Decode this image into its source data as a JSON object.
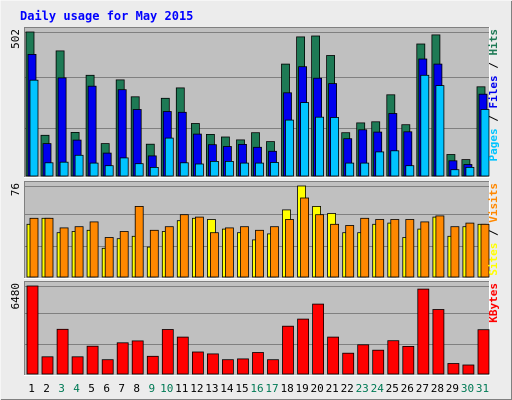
{
  "colors": {
    "frame_bg": "#ececec",
    "panel_bg": "#c0c0c0",
    "grid": "#808080",
    "title": "#0000ff",
    "hits": "#1e7a55",
    "files": "#0000ee",
    "pages": "#00c4ff",
    "sites": "#ffff00",
    "visits": "#ff8800",
    "kbytes": "#ff0000",
    "weekend_day": "#007a55",
    "weekday_day": "#000000"
  },
  "chart_data": {
    "type": "bar",
    "title": "Daily usage for May 2015",
    "x_label_colors": [
      "weekday",
      "weekday",
      "weekend",
      "weekend",
      "weekday",
      "weekday",
      "weekday",
      "weekday",
      "weekend",
      "weekend",
      "weekday",
      "weekday",
      "weekday",
      "weekday",
      "weekday",
      "weekend",
      "weekend",
      "weekday",
      "weekday",
      "weekday",
      "weekday",
      "weekday",
      "weekend",
      "weekend",
      "weekday",
      "weekday",
      "weekday",
      "weekday",
      "weekday",
      "weekend",
      "weekend"
    ],
    "categories": [
      "1",
      "2",
      "3",
      "4",
      "5",
      "6",
      "7",
      "8",
      "9",
      "10",
      "11",
      "12",
      "13",
      "14",
      "15",
      "16",
      "17",
      "18",
      "19",
      "20",
      "21",
      "22",
      "23",
      "24",
      "25",
      "26",
      "27",
      "28",
      "29",
      "30",
      "31"
    ],
    "panels": [
      {
        "id": "hits-files-pages",
        "ymax": 502,
        "ymax_label": "502",
        "legend": {
          "pages": "Pages",
          "sep1": " / ",
          "files": "Files",
          "sep2": " / ",
          "hits": "Hits"
        },
        "series": [
          {
            "name": "Hits",
            "color_key": "hits",
            "values": [
              502,
              142,
              436,
              152,
              351,
              113,
              335,
              276,
              111,
              271,
              307,
              183,
              145,
              136,
              126,
              151,
              120,
              390,
              485,
              488,
              420,
              151,
              185,
              189,
              283,
              179,
              460,
              492,
              75,
              57,
              311
            ]
          },
          {
            "name": "Files",
            "color_key": "files",
            "values": [
              424,
              113,
              342,
              125,
              313,
              80,
              301,
              232,
              70,
              225,
              222,
              146,
              109,
              103,
              110,
              100,
              86,
              290,
              381,
              341,
              322,
              130,
              161,
              153,
              218,
              154,
              408,
              390,
              53,
              40,
              285
            ]
          },
          {
            "name": "Pages",
            "color_key": "pages",
            "values": [
              334,
              46,
              48,
              72,
              45,
              36,
              63,
              43,
              30,
              132,
              46,
              42,
              51,
              51,
              45,
              45,
              47,
              195,
              256,
              205,
              204,
              45,
              45,
              84,
              88,
              36,
              351,
              315,
              22,
              30,
              232
            ]
          }
        ]
      },
      {
        "id": "sites-visits",
        "ymax": 76,
        "ymax_label": "76",
        "legend": {
          "sites": "Sites",
          "sep1": " / ",
          "visits": "Visits"
        },
        "series": [
          {
            "name": "Sites",
            "color_key": "sites",
            "values": [
              44,
              49,
              37,
              38,
              39,
              24,
              32,
              34,
              25,
              38,
              47,
              49,
              48,
              40,
              37,
              31,
              36,
              56,
              76,
              59,
              53,
              37,
              37,
              44,
              45,
              33,
              40,
              50,
              34,
              42,
              44
            ]
          },
          {
            "name": "Visits",
            "color_key": "visits",
            "values": [
              49,
              49,
              41,
              42,
              46,
              33,
              38,
              59,
              39,
              42,
              52,
              50,
              37,
              41,
              42,
              39,
              42,
              48,
              66,
              52,
              44,
              43,
              49,
              48,
              48,
              48,
              46,
              51,
              42,
              45,
              44
            ]
          }
        ]
      },
      {
        "id": "kbytes",
        "ymax": 6480,
        "ymax_label": "6480",
        "legend": {
          "kbytes": "KBytes"
        },
        "series": [
          {
            "name": "KBytes",
            "color_key": "kbytes",
            "values": [
              6480,
              1270,
              3290,
              1270,
              2050,
              1050,
              2300,
              2440,
              1300,
              3280,
              2720,
              1620,
              1480,
              1050,
              1110,
              1580,
              1050,
              3520,
              4040,
              5150,
              2720,
              1530,
              2150,
              1750,
              2450,
              2030,
              6250,
              4750,
              770,
              660,
              3260
            ]
          }
        ]
      }
    ]
  }
}
